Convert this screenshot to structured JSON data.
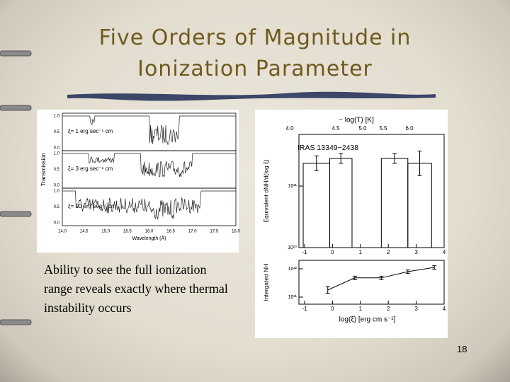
{
  "title": "Five Orders of Magnitude in Ionization Parameter",
  "body": "Ability to see the full ionization range reveals exactly where thermal instability occurs",
  "page_number": "18",
  "left_figure": {
    "y_label": "Transmission",
    "x_label": "Wavelength (Å)",
    "xticks": [
      "14.0",
      "14.5",
      "15.0",
      "15.5",
      "16.0",
      "16.5",
      "17.0",
      "17.5",
      "18.0"
    ],
    "yticks": [
      "1.0",
      "0.5",
      "0.0"
    ],
    "panels": [
      "ξ= 1 erg sec⁻¹ cm",
      "ξ= 3 erg sec⁻¹ cm",
      "ξ= 10 erg sec⁻¹ cm"
    ]
  },
  "right_figure": {
    "top_axis_label": "~ log(T) [K]",
    "top_ticks": [
      "4.0",
      "4.5",
      "5.0",
      "5.5",
      "6.0"
    ],
    "annotation": "IRAS 13349−2438",
    "x_label": "log(ξ) [erg cm s⁻¹]",
    "xlim": [
      -1,
      4
    ],
    "xticks": [
      -1,
      0,
      1,
      2,
      3,
      4
    ],
    "top_panel": {
      "y_label": "Equivalent dNH/d(log ξ)",
      "ylim": [
        20,
        21.84
      ],
      "yticks": [
        {
          "value": 21,
          "label": "10²¹"
        },
        {
          "value": 20,
          "label": "10²⁰"
        }
      ],
      "bins": [
        -1.05,
        -0.1,
        0.7,
        1.75,
        2.7,
        3.55
      ],
      "values": [
        21.37,
        21.45,
        null,
        21.45,
        21.37
      ],
      "errors": [
        0.12,
        0.08,
        null,
        0.08,
        0.2
      ]
    },
    "bottom_panel": {
      "y_label": "Intergated NH",
      "ylim": [
        20.75,
        22.3
      ],
      "yticks": [
        {
          "value": 22,
          "label": "10²²"
        },
        {
          "value": 21,
          "label": "10²¹"
        }
      ],
      "x": [
        -0.17,
        0.8,
        1.75,
        2.7,
        3.65
      ],
      "values": [
        21.25,
        21.68,
        21.68,
        21.9,
        22.05
      ],
      "errors": [
        0.12,
        0.06,
        0.06,
        0.06,
        0.06
      ]
    }
  }
}
